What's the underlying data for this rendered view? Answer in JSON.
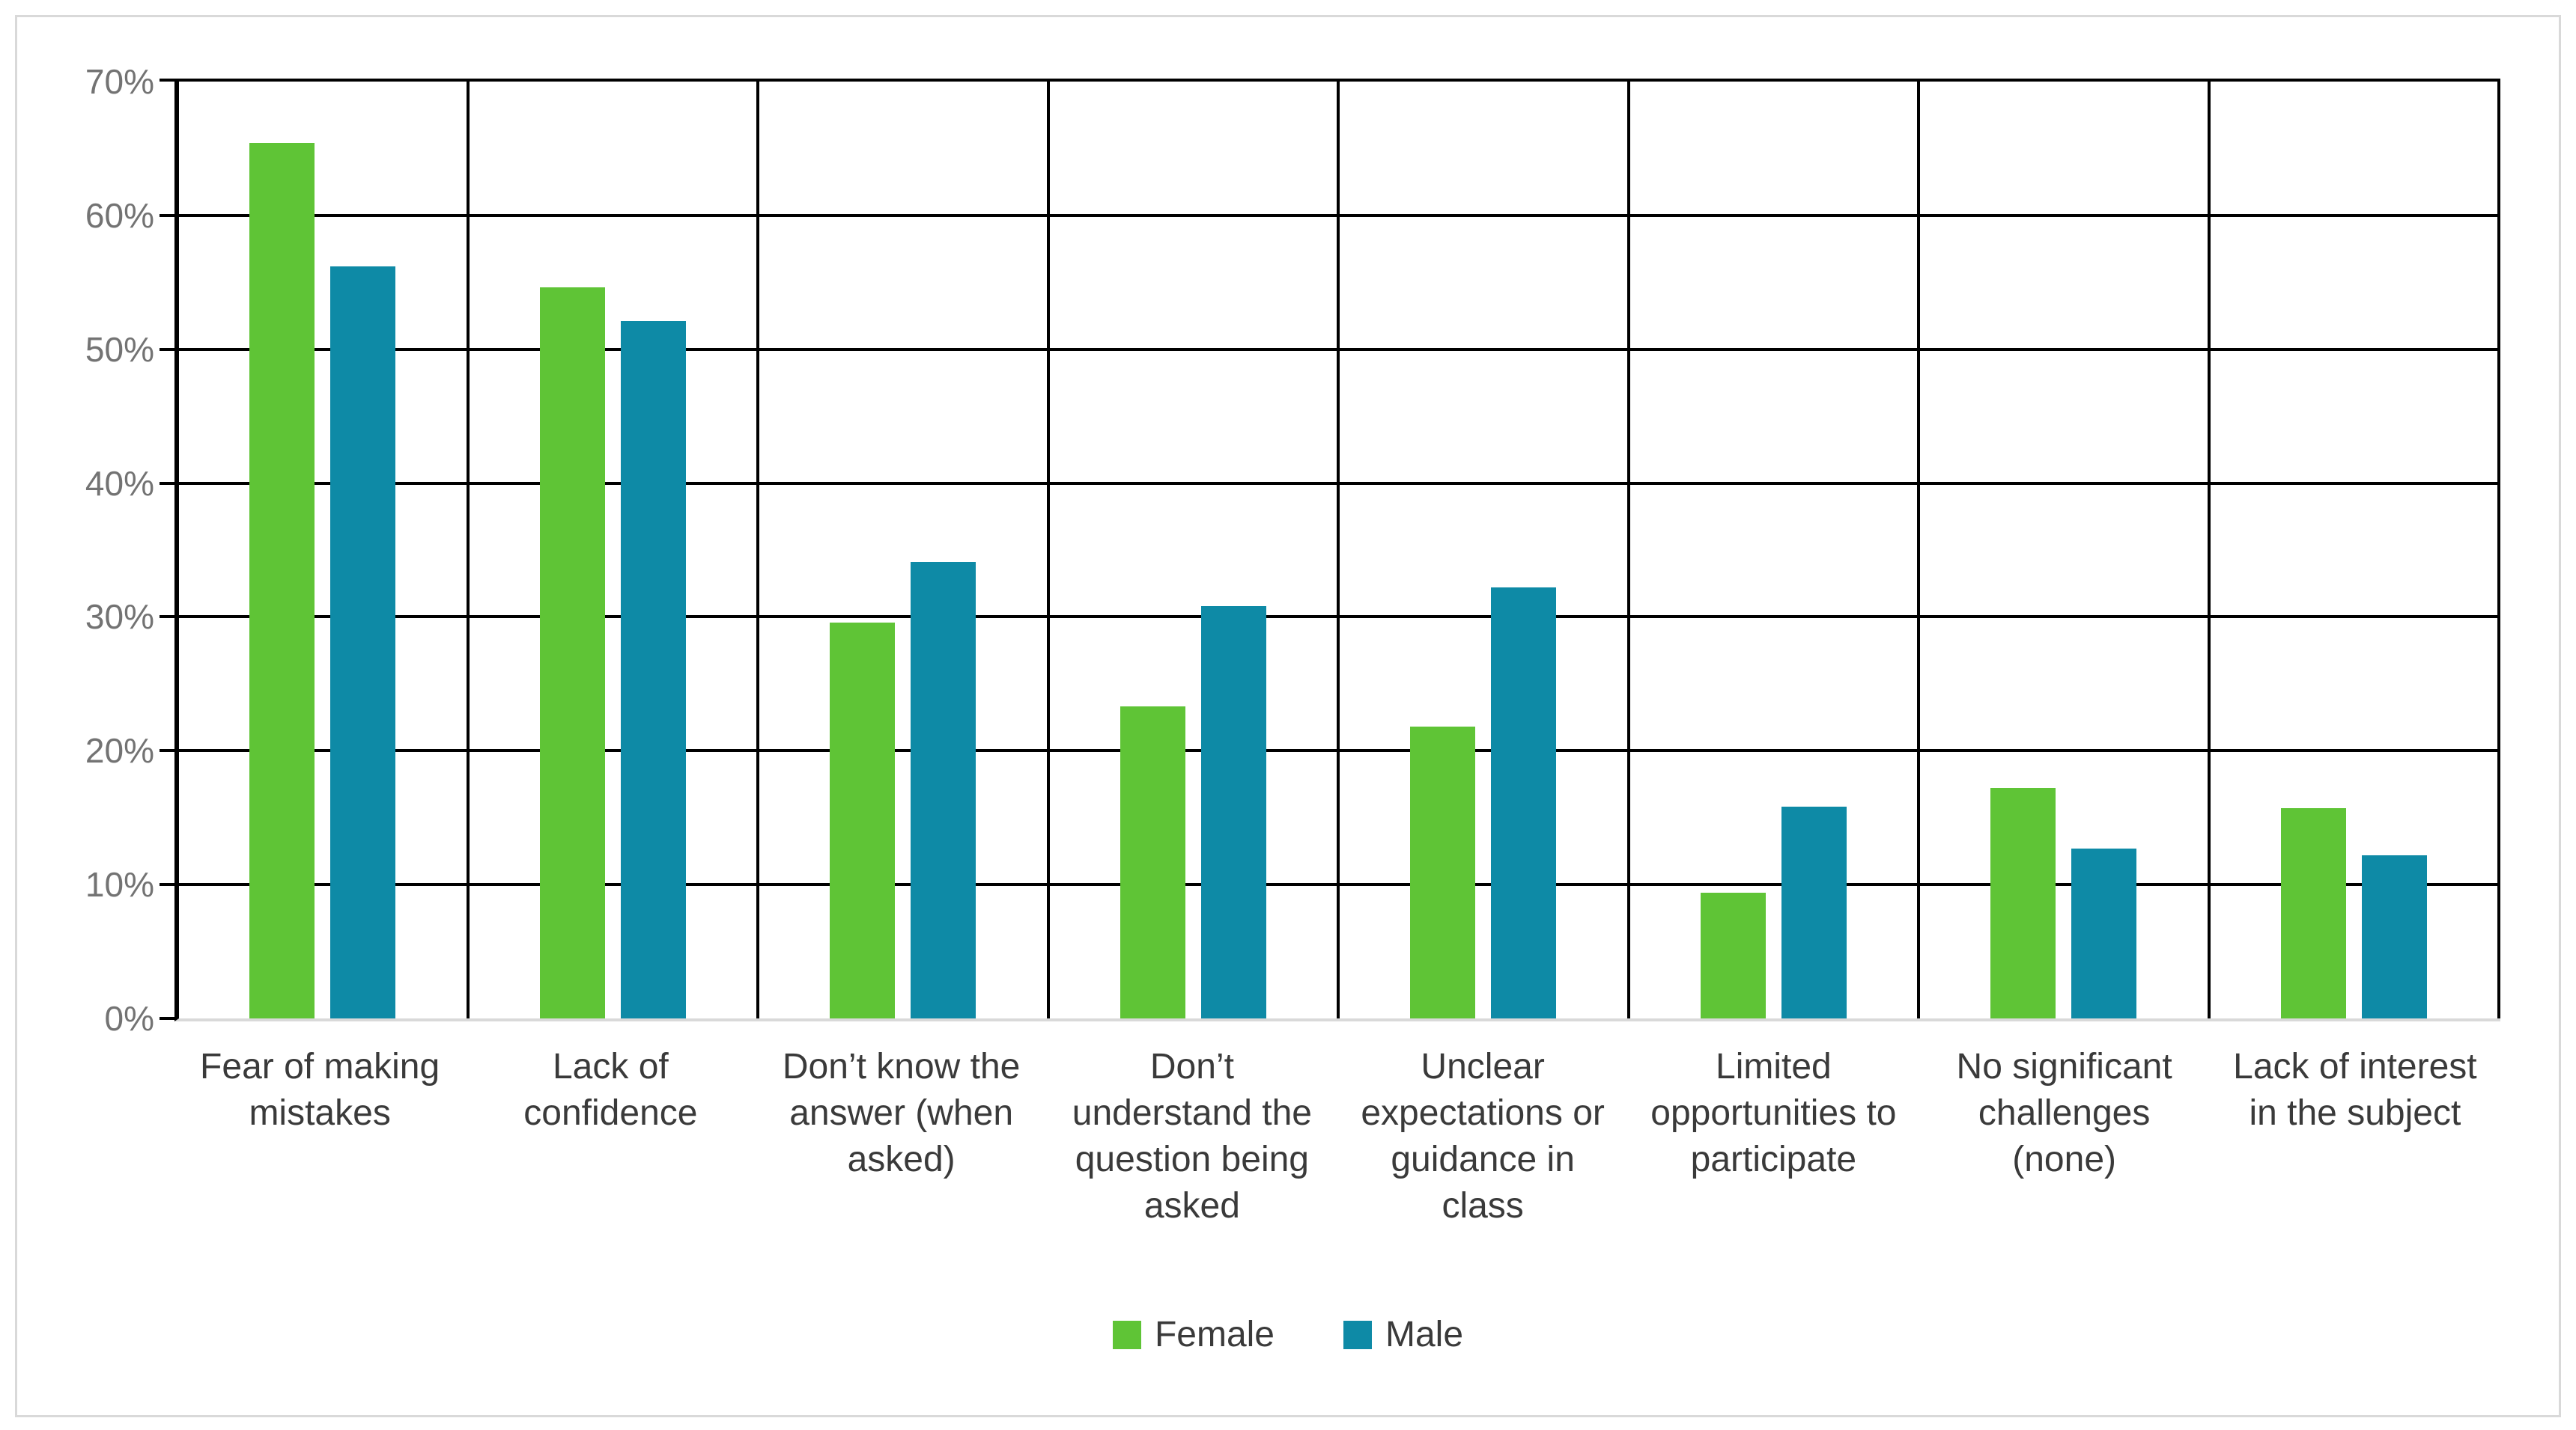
{
  "chart_data": {
    "type": "bar",
    "title": "",
    "categories": [
      "Fear of making\nmistakes",
      "Lack of\nconfidence",
      "Don’t know the\nanswer (when\nasked)",
      "Don’t\nunderstand the\nquestion being\nasked",
      "Unclear\nexpectations or\nguidance in\nclass",
      "Limited\nopportunities to\nparticipate",
      "No significant\nchallenges\n(none)",
      "Lack of interest\nin the subject"
    ],
    "series": [
      {
        "name": "Female",
        "color": "#5FC436",
        "values": [
          65.4,
          54.6,
          29.6,
          23.3,
          21.8,
          9.4,
          17.2,
          15.7
        ]
      },
      {
        "name": "Male",
        "color": "#0E8AA6",
        "values": [
          56.2,
          52.1,
          34.1,
          30.8,
          32.2,
          15.8,
          12.7,
          12.2
        ]
      }
    ],
    "y_ticks": [
      "70%",
      "60%",
      "50%",
      "40%",
      "30%",
      "20%",
      "10%",
      "0%"
    ],
    "ylim": [
      0,
      70
    ],
    "xlabel": "",
    "ylabel": "",
    "grid": {
      "horizontal": true,
      "vertical": true,
      "gridline_color": "#000000",
      "baseline_color": "#d9d9d9"
    },
    "legend_position": "bottom",
    "frame_border_color": "#d9d9d9"
  }
}
